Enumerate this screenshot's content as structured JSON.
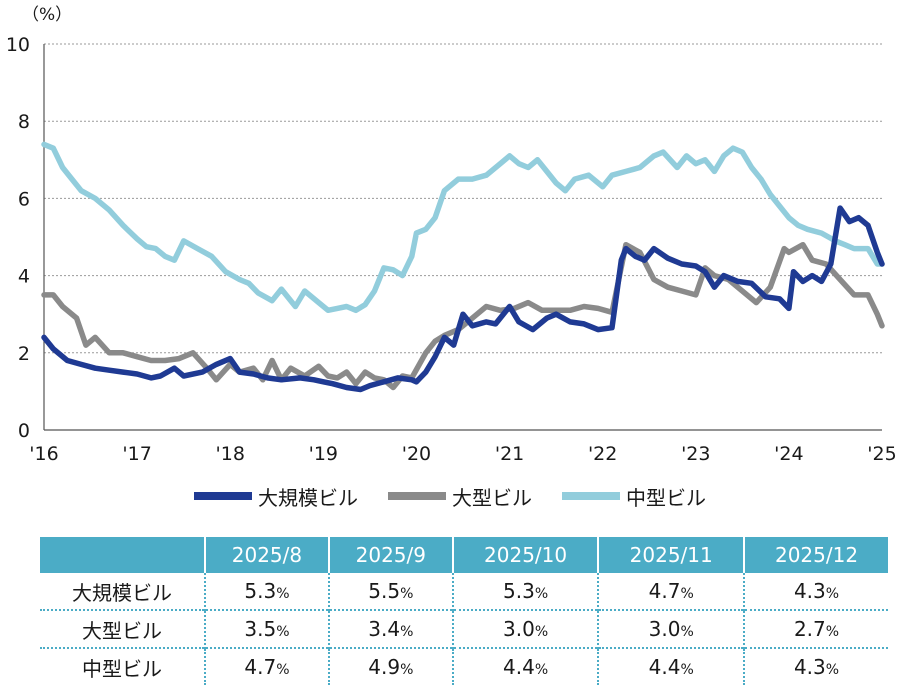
{
  "chart_data": {
    "type": "line",
    "ylabel": "（%）",
    "ylim": [
      0,
      10
    ],
    "yticks": [
      "0",
      "2",
      "4",
      "6",
      "8",
      "10"
    ],
    "xlim": [
      2016,
      2025
    ],
    "xtick_labels": [
      "'16",
      "'17",
      "'18",
      "'19",
      "'20",
      "'21",
      "'22",
      "'23",
      "'24",
      "'25"
    ],
    "grid": true,
    "legend_position": "bottom",
    "series": [
      {
        "name": "大規模ビル",
        "color": "#1f3a93",
        "x": [
          2016.0,
          2016.1,
          2016.25,
          2016.4,
          2016.55,
          2016.7,
          2016.85,
          2017.0,
          2017.15,
          2017.25,
          2017.4,
          2017.5,
          2017.7,
          2017.85,
          2018.0,
          2018.1,
          2018.25,
          2018.4,
          2018.55,
          2018.75,
          2018.9,
          2019.0,
          2019.1,
          2019.25,
          2019.4,
          2019.5,
          2019.65,
          2019.8,
          2019.95,
          2020.0,
          2020.1,
          2020.2,
          2020.3,
          2020.4,
          2020.5,
          2020.6,
          2020.75,
          2020.85,
          2021.0,
          2021.1,
          2021.25,
          2021.4,
          2021.5,
          2021.65,
          2021.8,
          2021.95,
          2022.1,
          2022.2,
          2022.25,
          2022.35,
          2022.45,
          2022.55,
          2022.7,
          2022.85,
          2023.0,
          2023.1,
          2023.2,
          2023.3,
          2023.45,
          2023.6,
          2023.75,
          2023.9,
          2024.0,
          2024.05,
          2024.15,
          2024.25,
          2024.35,
          2024.45,
          2024.55,
          2024.65,
          2024.75,
          2024.85,
          2024.95,
          2025.0
        ],
        "values": [
          2.4,
          2.1,
          1.8,
          1.7,
          1.6,
          1.55,
          1.5,
          1.45,
          1.35,
          1.4,
          1.6,
          1.4,
          1.5,
          1.7,
          1.85,
          1.5,
          1.45,
          1.35,
          1.3,
          1.35,
          1.3,
          1.25,
          1.2,
          1.1,
          1.05,
          1.15,
          1.25,
          1.35,
          1.3,
          1.25,
          1.5,
          1.9,
          2.4,
          2.2,
          3.0,
          2.7,
          2.8,
          2.75,
          3.2,
          2.8,
          2.6,
          2.9,
          3.0,
          2.8,
          2.75,
          2.6,
          2.65,
          4.4,
          4.7,
          4.5,
          4.4,
          4.7,
          4.45,
          4.3,
          4.25,
          4.1,
          3.7,
          4.0,
          3.85,
          3.8,
          3.45,
          3.4,
          3.15,
          4.1,
          3.85,
          4.0,
          3.85,
          4.3,
          5.75,
          5.4,
          5.5,
          5.3,
          4.6,
          4.3
        ]
      },
      {
        "name": "大型ビル",
        "color": "#8a8a8a",
        "x": [
          2016.0,
          2016.1,
          2016.2,
          2016.35,
          2016.45,
          2016.55,
          2016.7,
          2016.85,
          2017.0,
          2017.15,
          2017.3,
          2017.45,
          2017.6,
          2017.75,
          2017.85,
          2018.0,
          2018.1,
          2018.25,
          2018.35,
          2018.45,
          2018.55,
          2018.65,
          2018.8,
          2018.95,
          2019.05,
          2019.15,
          2019.25,
          2019.35,
          2019.45,
          2019.55,
          2019.65,
          2019.75,
          2019.85,
          2019.95,
          2020.1,
          2020.2,
          2020.3,
          2020.45,
          2020.6,
          2020.75,
          2020.9,
          2021.05,
          2021.2,
          2021.35,
          2021.5,
          2021.65,
          2021.8,
          2021.95,
          2022.1,
          2022.25,
          2022.4,
          2022.55,
          2022.7,
          2022.85,
          2023.0,
          2023.1,
          2023.2,
          2023.35,
          2023.5,
          2023.65,
          2023.8,
          2023.95,
          2024.0,
          2024.15,
          2024.25,
          2024.4,
          2024.55,
          2024.7,
          2024.85,
          2024.95,
          2025.0
        ],
        "values": [
          3.5,
          3.5,
          3.2,
          2.9,
          2.2,
          2.4,
          2.0,
          2.0,
          1.9,
          1.8,
          1.8,
          1.85,
          2.0,
          1.6,
          1.3,
          1.7,
          1.5,
          1.6,
          1.3,
          1.8,
          1.3,
          1.6,
          1.4,
          1.65,
          1.4,
          1.35,
          1.5,
          1.2,
          1.5,
          1.35,
          1.3,
          1.1,
          1.4,
          1.35,
          2.0,
          2.3,
          2.45,
          2.6,
          2.9,
          3.2,
          3.1,
          3.15,
          3.3,
          3.1,
          3.1,
          3.1,
          3.2,
          3.15,
          3.05,
          4.8,
          4.6,
          3.9,
          3.7,
          3.6,
          3.5,
          4.2,
          4.0,
          3.9,
          3.6,
          3.3,
          3.7,
          4.7,
          4.6,
          4.8,
          4.4,
          4.3,
          3.9,
          3.5,
          3.5,
          3.0,
          2.7
        ]
      },
      {
        "name": "中型ビル",
        "color": "#92cddc",
        "x": [
          2016.0,
          2016.1,
          2016.2,
          2016.3,
          2016.4,
          2016.55,
          2016.7,
          2016.85,
          2017.0,
          2017.1,
          2017.2,
          2017.3,
          2017.4,
          2017.5,
          2017.65,
          2017.8,
          2017.95,
          2018.1,
          2018.2,
          2018.3,
          2018.45,
          2018.55,
          2018.7,
          2018.8,
          2018.95,
          2019.05,
          2019.15,
          2019.25,
          2019.35,
          2019.45,
          2019.55,
          2019.65,
          2019.75,
          2019.85,
          2019.95,
          2020.0,
          2020.1,
          2020.2,
          2020.3,
          2020.45,
          2020.6,
          2020.75,
          2020.9,
          2021.0,
          2021.1,
          2021.2,
          2021.3,
          2021.4,
          2021.5,
          2021.6,
          2021.7,
          2021.85,
          2022.0,
          2022.1,
          2022.25,
          2022.4,
          2022.55,
          2022.65,
          2022.8,
          2022.9,
          2023.0,
          2023.1,
          2023.2,
          2023.3,
          2023.4,
          2023.5,
          2023.6,
          2023.7,
          2023.8,
          2023.9,
          2024.0,
          2024.1,
          2024.2,
          2024.35,
          2024.5,
          2024.6,
          2024.7,
          2024.85,
          2024.95,
          2025.0
        ],
        "values": [
          7.4,
          7.3,
          6.8,
          6.5,
          6.2,
          6.0,
          5.7,
          5.3,
          4.95,
          4.75,
          4.7,
          4.5,
          4.4,
          4.9,
          4.7,
          4.5,
          4.1,
          3.9,
          3.8,
          3.55,
          3.35,
          3.65,
          3.2,
          3.6,
          3.3,
          3.1,
          3.15,
          3.2,
          3.1,
          3.25,
          3.6,
          4.2,
          4.15,
          4.0,
          4.5,
          5.1,
          5.2,
          5.5,
          6.2,
          6.5,
          6.5,
          6.6,
          6.9,
          7.1,
          6.9,
          6.8,
          7.0,
          6.7,
          6.4,
          6.2,
          6.5,
          6.6,
          6.3,
          6.6,
          6.7,
          6.8,
          7.1,
          7.2,
          6.8,
          7.1,
          6.9,
          7.0,
          6.7,
          7.1,
          7.3,
          7.2,
          6.8,
          6.5,
          6.1,
          5.8,
          5.5,
          5.3,
          5.2,
          5.1,
          4.9,
          4.8,
          4.7,
          4.7,
          4.3,
          4.3
        ]
      }
    ]
  },
  "legend": {
    "items": [
      "大規模ビル",
      "大型ビル",
      "中型ビル"
    ],
    "colors": [
      "#1f3a93",
      "#8a8a8a",
      "#92cddc"
    ]
  },
  "table": {
    "header_color": "#4bacc6",
    "columns": [
      "2025/8",
      "2025/9",
      "2025/10",
      "2025/11",
      "2025/12"
    ],
    "unit": "%",
    "rows": [
      {
        "label": "大規模ビル",
        "values": [
          "5.3",
          "5.5",
          "5.3",
          "4.7",
          "4.3"
        ]
      },
      {
        "label": "大型ビル",
        "values": [
          "3.5",
          "3.4",
          "3.0",
          "3.0",
          "2.7"
        ]
      },
      {
        "label": "中型ビル",
        "values": [
          "4.7",
          "4.9",
          "4.4",
          "4.4",
          "4.3"
        ]
      }
    ]
  }
}
